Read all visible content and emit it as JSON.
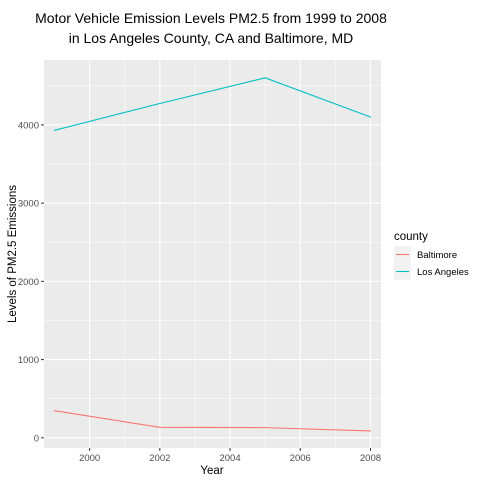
{
  "chart_data": {
    "type": "line",
    "title": [
      "Motor Vehicle Emission Levels PM2.5  from 1999 to 2008",
      "in Los Angeles County, CA and Baltimore, MD"
    ],
    "xlabel": "Year",
    "ylabel": "Levels of PM2.5 Emissions",
    "x": [
      1999,
      2002,
      2005,
      2008
    ],
    "x_ticks": [
      "2000",
      "2002",
      "2004",
      "2006",
      "2008"
    ],
    "y_ticks": [
      "0",
      "1000",
      "2000",
      "3000",
      "4000"
    ],
    "xlim": [
      1998.7,
      2008.3
    ],
    "ylim": [
      -130,
      4830
    ],
    "grid": true,
    "legend": {
      "title": "county",
      "position": "right"
    },
    "series": [
      {
        "name": "Baltimore",
        "color": "#F8766D",
        "values": [
          346.8,
          134.3,
          130.4,
          88.3
        ]
      },
      {
        "name": "Los Angeles",
        "color": "#00BFC4",
        "values": [
          3931.1,
          4274.0,
          4601.4,
          4101.3
        ]
      }
    ]
  }
}
